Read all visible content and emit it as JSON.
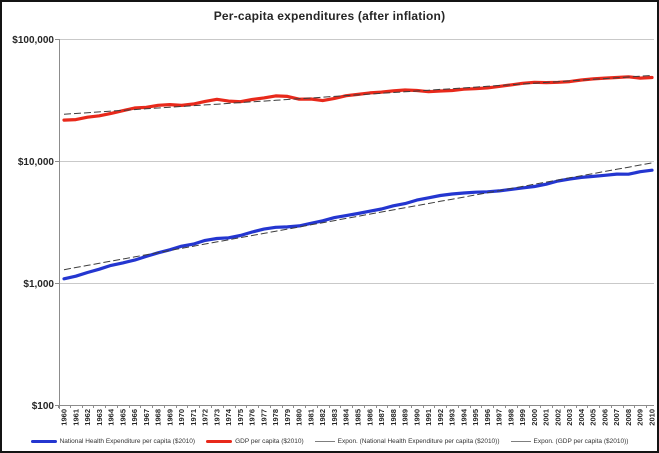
{
  "title": "Per-capita expenditures (after inflation)",
  "colors": {
    "nhe_line": "#2436d0",
    "gdp_line": "#e8291b",
    "trendline": "#3d3d3d",
    "legend_trend_swatch": "#7f7f7f",
    "gridline": "#c9c9c9",
    "axis": "#8c8c8c",
    "text": "#262626"
  },
  "y_axis": {
    "scale": "log",
    "ticks": [
      {
        "label": "$100,000",
        "value": 100000
      },
      {
        "label": "$10,000",
        "value": 10000
      },
      {
        "label": "$1,000",
        "value": 1000
      },
      {
        "label": "$100",
        "value": 100
      }
    ]
  },
  "chart_data": {
    "type": "line",
    "title": "Per-capita expenditures (after inflation)",
    "xlabel": "",
    "ylabel": "",
    "y_scale": "log",
    "ylim": [
      100,
      100000
    ],
    "grid": "horizontal",
    "legend_position": "bottom",
    "x": [
      1960,
      1961,
      1962,
      1963,
      1964,
      1965,
      1966,
      1967,
      1968,
      1969,
      1970,
      1971,
      1972,
      1973,
      1974,
      1975,
      1976,
      1977,
      1978,
      1979,
      1980,
      1981,
      1982,
      1983,
      1984,
      1985,
      1986,
      1987,
      1988,
      1989,
      1990,
      1991,
      1992,
      1993,
      1994,
      1995,
      1996,
      1997,
      1998,
      1999,
      2000,
      2001,
      2002,
      2003,
      2004,
      2005,
      2006,
      2007,
      2008,
      2009,
      2010
    ],
    "series": [
      {
        "name": "National Health Expenditure per capita ($2010)",
        "color": "#2436d0",
        "stroke_width": 3.2,
        "values": [
          1083,
          1138,
          1220,
          1297,
          1393,
          1461,
          1541,
          1652,
          1767,
          1872,
          2001,
          2084,
          2233,
          2314,
          2349,
          2453,
          2618,
          2764,
          2860,
          2881,
          2938,
          3085,
          3236,
          3438,
          3570,
          3716,
          3875,
          4045,
          4296,
          4478,
          4780,
          4994,
          5214,
          5367,
          5471,
          5553,
          5591,
          5689,
          5855,
          6022,
          6183,
          6454,
          6856,
          7121,
          7343,
          7484,
          7640,
          7810,
          7802,
          8165,
          8412
        ]
      },
      {
        "name": "GDP per capita ($2010)",
        "color": "#e8291b",
        "stroke_width": 3.2,
        "values": [
          21625,
          21853,
          22862,
          23477,
          24538,
          25861,
          27213,
          27576,
          28615,
          28990,
          28549,
          29305,
          30801,
          32031,
          30959,
          30596,
          31902,
          32902,
          34179,
          33849,
          32074,
          32228,
          31294,
          32585,
          34312,
          35179,
          36152,
          36684,
          37573,
          38161,
          37851,
          36999,
          37507,
          37846,
          38789,
          39109,
          39754,
          40839,
          42047,
          43319,
          44171,
          43901,
          44168,
          44788,
          46085,
          47116,
          47845,
          48311,
          49029,
          47799,
          48375
        ]
      },
      {
        "name": "Expon. (National Health Expenditure per capita ($2010))",
        "type": "exponential_trendline",
        "source_series": 0,
        "color": "#3d3d3d"
      },
      {
        "name": "Expon. (GDP per capita ($2010))",
        "type": "exponential_trendline",
        "source_series": 1,
        "color": "#3d3d3d"
      }
    ]
  },
  "legend": {
    "items": [
      {
        "label": "National Health Expenditure per capita ($2010)",
        "swatch": "thick",
        "color": "#2436d0"
      },
      {
        "label": "GDP per capita ($2010)",
        "swatch": "thick",
        "color": "#e8291b"
      },
      {
        "label": "Expon. (National Health Expenditure per capita ($2010))",
        "swatch": "thin",
        "color": "#7f7f7f"
      },
      {
        "label": "Expon. (GDP per capita ($2010))",
        "swatch": "thin",
        "color": "#7f7f7f"
      }
    ]
  }
}
